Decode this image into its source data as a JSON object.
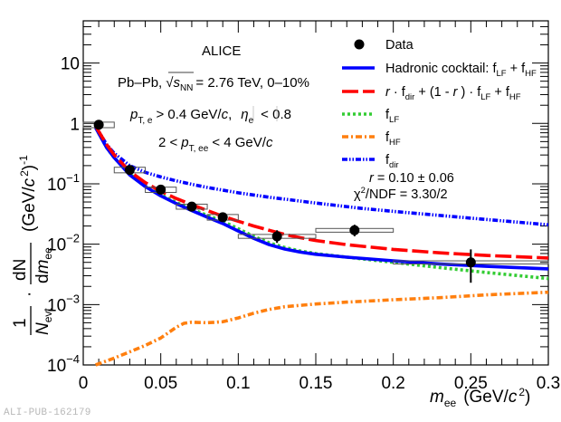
{
  "chart_data": {
    "type": "line",
    "title": "",
    "xlabel": "m_ee (GeV/c^2)",
    "ylabel": "1/N_evt · dN/dm_ee (GeV/c^2)^-1",
    "xlim": [
      0,
      0.3
    ],
    "ylim": [
      0.0001,
      50
    ],
    "yscale": "log",
    "grid": false,
    "legend_position": "top-right",
    "x_ticks": [
      0,
      0.05,
      0.1,
      0.15,
      0.2,
      0.25,
      0.3
    ],
    "x_tick_labels": [
      "0",
      "0.05",
      "0.1",
      "0.15",
      "0.2",
      "0.25",
      "0.3"
    ],
    "y_ticks": [
      0.0001,
      0.001,
      0.01,
      0.1,
      1,
      10
    ],
    "y_tick_labels": [
      {
        "base": "10",
        "exp": "−4"
      },
      {
        "base": "10",
        "exp": "−3"
      },
      {
        "base": "10",
        "exp": "−2"
      },
      {
        "base": "10",
        "exp": "−1"
      },
      {
        "base": "1",
        "exp": ""
      },
      {
        "base": "10",
        "exp": ""
      }
    ],
    "data_points": {
      "name": "Data",
      "color": "#000000",
      "points": [
        {
          "x": 0.01,
          "y": 0.95,
          "xerr": 0.01,
          "sys_low": 0.85,
          "sys_high": 1.05,
          "stat_low": 0.93,
          "stat_high": 0.97
        },
        {
          "x": 0.03,
          "y": 0.17,
          "xerr": 0.01,
          "sys_low": 0.152,
          "sys_high": 0.188,
          "stat_low": 0.165,
          "stat_high": 0.175
        },
        {
          "x": 0.05,
          "y": 0.08,
          "xerr": 0.01,
          "sys_low": 0.072,
          "sys_high": 0.088,
          "stat_low": 0.077,
          "stat_high": 0.083
        },
        {
          "x": 0.07,
          "y": 0.042,
          "xerr": 0.01,
          "sys_low": 0.038,
          "sys_high": 0.046,
          "stat_low": 0.04,
          "stat_high": 0.044
        },
        {
          "x": 0.09,
          "y": 0.028,
          "xerr": 0.01,
          "sys_low": 0.025,
          "sys_high": 0.031,
          "stat_low": 0.026,
          "stat_high": 0.03
        },
        {
          "x": 0.125,
          "y": 0.0135,
          "xerr": 0.025,
          "sys_low": 0.0125,
          "sys_high": 0.0145,
          "stat_low": 0.0105,
          "stat_high": 0.017
        },
        {
          "x": 0.175,
          "y": 0.017,
          "xerr": 0.025,
          "sys_low": 0.0158,
          "sys_high": 0.0182,
          "stat_low": 0.0135,
          "stat_high": 0.021
        },
        {
          "x": 0.25,
          "y": 0.005,
          "xerr": 0.05,
          "sys_low": 0.0047,
          "sys_high": 0.0053,
          "stat_low": 0.0023,
          "stat_high": 0.0082
        }
      ]
    },
    "series": [
      {
        "name": "Hadronic cocktail: f_LF + f_HF",
        "color": "#0000ff",
        "style": "solid",
        "x": [
          0.008,
          0.015,
          0.02,
          0.03,
          0.04,
          0.05,
          0.06,
          0.07,
          0.08,
          0.09,
          0.1,
          0.11,
          0.12,
          0.13,
          0.14,
          0.15,
          0.17,
          0.2,
          0.23,
          0.26,
          0.3
        ],
        "y": [
          0.85,
          0.4,
          0.27,
          0.14,
          0.09,
          0.063,
          0.047,
          0.036,
          0.028,
          0.022,
          0.0165,
          0.0125,
          0.0098,
          0.0083,
          0.0074,
          0.0068,
          0.0061,
          0.0053,
          0.0047,
          0.0043,
          0.0039
        ]
      },
      {
        "name": "r · f_dir + (1 - r) · f_LF + f_HF",
        "color": "#ff0000",
        "style": "dashed",
        "x": [
          0.008,
          0.015,
          0.02,
          0.03,
          0.04,
          0.05,
          0.06,
          0.07,
          0.08,
          0.09,
          0.1,
          0.11,
          0.12,
          0.13,
          0.14,
          0.15,
          0.17,
          0.2,
          0.23,
          0.26,
          0.3
        ],
        "y": [
          0.9,
          0.45,
          0.3,
          0.16,
          0.105,
          0.075,
          0.057,
          0.045,
          0.036,
          0.029,
          0.024,
          0.02,
          0.017,
          0.0145,
          0.0128,
          0.0115,
          0.0098,
          0.0082,
          0.0072,
          0.0065,
          0.0059
        ]
      },
      {
        "name": "f_LF",
        "color": "#33cc33",
        "style": "dotted",
        "x": [
          0.008,
          0.015,
          0.02,
          0.03,
          0.04,
          0.05,
          0.06,
          0.07,
          0.08,
          0.09,
          0.1,
          0.11,
          0.12,
          0.13,
          0.14,
          0.15,
          0.17,
          0.2,
          0.23,
          0.26,
          0.3
        ],
        "y": [
          0.85,
          0.4,
          0.27,
          0.145,
          0.093,
          0.066,
          0.049,
          0.038,
          0.03,
          0.024,
          0.018,
          0.0135,
          0.0105,
          0.0088,
          0.0077,
          0.007,
          0.0061,
          0.005,
          0.0041,
          0.0034,
          0.0027
        ]
      },
      {
        "name": "f_HF",
        "color": "#ff7f0e",
        "style": "dash-dot",
        "x": [
          0.008,
          0.02,
          0.03,
          0.04,
          0.05,
          0.06,
          0.065,
          0.07,
          0.08,
          0.09,
          0.1,
          0.11,
          0.12,
          0.13,
          0.15,
          0.17,
          0.2,
          0.23,
          0.26,
          0.3
        ],
        "y": [
          0.0001,
          0.00013,
          0.000165,
          0.00021,
          0.00028,
          0.00042,
          0.00049,
          0.00051,
          0.0005,
          0.00052,
          0.0006,
          0.00072,
          0.00083,
          0.00092,
          0.00102,
          0.0011,
          0.0012,
          0.0013,
          0.00145,
          0.0016
        ]
      },
      {
        "name": "f_dir",
        "color": "#0000ff",
        "style": "dash-dot-dot",
        "x": [
          0.008,
          0.015,
          0.02,
          0.03,
          0.04,
          0.05,
          0.06,
          0.07,
          0.08,
          0.1,
          0.12,
          0.15,
          0.18,
          0.2,
          0.25,
          0.3
        ],
        "y": [
          0.9,
          0.45,
          0.32,
          0.2,
          0.155,
          0.13,
          0.112,
          0.098,
          0.087,
          0.071,
          0.06,
          0.048,
          0.039,
          0.035,
          0.027,
          0.021
        ]
      }
    ],
    "annotations": {
      "experiment": "ALICE",
      "system": "Pb–Pb, √s_NN = 2.76 TeV, 0–10%",
      "cut1": "p_T,e > 0.4 GeV/c, |η_e| < 0.8",
      "cut2": "2 < p_T,ee < 4 GeV/c",
      "fit_r": "r = 0.10 ± 0.06",
      "fit_chi2": "χ²/NDF = 3.30/2"
    }
  },
  "labels": {
    "experiment": "ALICE",
    "system_prefix": "Pb–Pb,",
    "system_s": "s",
    "system_s_sub": "NN",
    "system_suffix": "= 2.76 TeV, 0–10%",
    "cut1_p": "p",
    "cut1_sub": "T, e",
    "cut1_mid": "> 0.4 GeV/",
    "cut1_c": "c",
    "cut1_comma": ",",
    "cut1_eta": "η",
    "cut1_eta_sub": "e",
    "cut1_end": "< 0.8",
    "cut2_pre": "2 <",
    "cut2_p": "p",
    "cut2_sub": "T, ee",
    "cut2_mid": "< 4 GeV/",
    "cut2_c": "c",
    "leg_data": "Data",
    "leg_cocktail_pre": "Hadronic cocktail: f",
    "leg_cocktail_sub1": "LF",
    "leg_cocktail_mid": " + f",
    "leg_cocktail_sub2": "HF",
    "leg_red_r1": "r",
    "leg_red_a": " · f",
    "leg_red_sub1": "dir",
    "leg_red_b": " + (1 - ",
    "leg_red_r2": "r",
    "leg_red_c": " ) · f",
    "leg_red_sub2": "LF",
    "leg_red_d": " + f",
    "leg_red_sub3": "HF",
    "leg_f": "f",
    "leg_lf_sub": "LF",
    "leg_hf_sub": "HF",
    "leg_dir_sub": "dir",
    "fit_r_var": "r",
    "fit_r_val": " = 0.10 ± 0.06",
    "fit_chi": "χ",
    "fit_chi_sup": "2",
    "fit_chi_rest": "/NDF = 3.30/2",
    "xaxis_m": "m",
    "xaxis_sub": "ee",
    "xaxis_unit_a": "(GeV/",
    "xaxis_c": "c",
    "xaxis_sup": "2",
    "xaxis_close": ")",
    "yaxis_one": "1",
    "yaxis_N": "N",
    "yaxis_N_sub": "evt",
    "yaxis_dot": "·",
    "yaxis_dN": "dN",
    "yaxis_dm_d": "d",
    "yaxis_dm_m": "m",
    "yaxis_dm_sub": "ee",
    "yaxis_unit_a": "(GeV/",
    "yaxis_c": "c",
    "yaxis_sup": "2",
    "yaxis_unit_b": ")",
    "yaxis_unit_sup": "-1"
  },
  "watermark": "ALI-PUB-162179"
}
